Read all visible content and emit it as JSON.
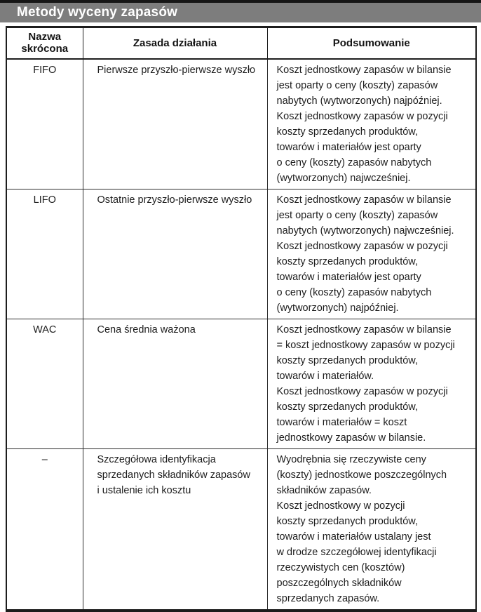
{
  "title_bar": {
    "title": "Metody wyceny zapasów"
  },
  "colors": {
    "title_bar_background": "#7d7d7d",
    "title_text": "#ffffff",
    "top_strip": "#161616",
    "table_border": "#1d1d1d",
    "body_text": "#1c1c1c",
    "page_background": "#ffffff"
  },
  "table": {
    "headers": [
      "Nazwa skrócona",
      "Zasada działania",
      "Podsumowanie"
    ],
    "rows": [
      {
        "name": "FIFO",
        "principle": "Pierwsze przyszło-pierwsze wyszło",
        "summary": "Koszt jednostkowy zapasów w bilansie\njest oparty o ceny (koszty) zapasów\nnabytych (wytworzonych) najpóźniej.\nKoszt jednostkowy zapasów w pozycji\nkoszty sprzedanych produktów,\ntowarów i materiałów jest oparty\no ceny (koszty) zapasów nabytych\n(wytworzonych) najwcześniej."
      },
      {
        "name": "LIFO",
        "principle": "Ostatnie przyszło-pierwsze wyszło",
        "summary": "Koszt jednostkowy zapasów w bilansie\njest oparty o ceny (koszty) zapasów\nnabytych (wytworzonych) najwcześniej.\nKoszt jednostkowy zapasów w pozycji\nkoszty sprzedanych produktów,\ntowarów i materiałów jest oparty\no ceny (koszty) zapasów nabytych\n(wytworzonych) najpóźniej."
      },
      {
        "name": "WAC",
        "principle": "Cena średnia ważona",
        "summary": "Koszt jednostkowy zapasów w bilansie\n= koszt jednostkowy zapasów w pozycji\nkoszty sprzedanych produktów,\ntowarów i materiałów.\nKoszt jednostkowy zapasów w pozycji\nkoszty sprzedanych produktów,\ntowarów i materiałów = koszt\njednostkowy zapasów w bilansie."
      },
      {
        "name": "–",
        "principle": "Szczegółowa identyfikacja\nsprzedanych składników zapasów\ni ustalenie ich kosztu",
        "summary": "Wyodrębnia się rzeczywiste ceny\n(koszty) jednostkowe poszczególnych\nskładników zapasów.\nKoszt jednostkowy w pozycji\nkoszty sprzedanych produktów,\ntowarów i materiałów ustalany jest\nw drodze szczegółowej identyfikacji\nrzeczywistych cen (kosztów)\nposzczególnych składników\nsprzedanych zapasów."
      }
    ]
  }
}
